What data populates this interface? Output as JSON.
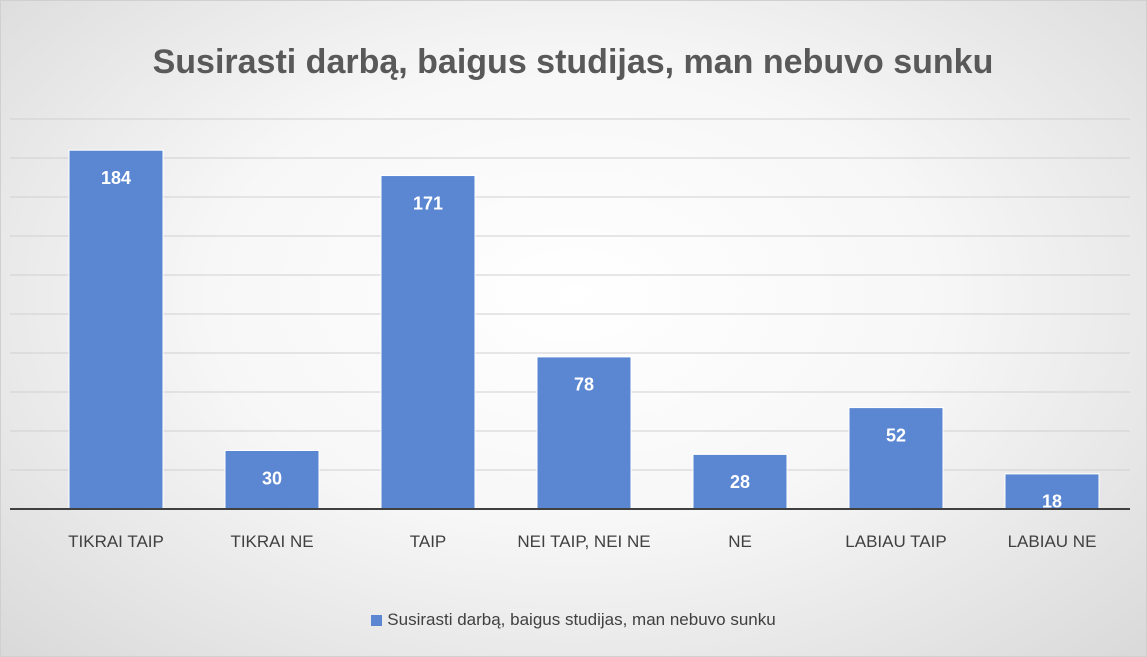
{
  "chart_data": {
    "type": "bar",
    "title": "Susirasti darbą, baigus studijas, man nebuvo sunku",
    "categories": [
      "TIKRAI TAIP",
      "TIKRAI NE",
      "TAIP",
      "NEI TAIP, NEI NE",
      "NE",
      "LABIAU TAIP",
      "LABIAU NE"
    ],
    "series": [
      {
        "name": "Susirasti darbą, baigus studijas, man nebuvo sunku",
        "color": "#5b87d2",
        "values": [
          184,
          30,
          171,
          78,
          28,
          52,
          18
        ]
      }
    ],
    "ylim": [
      0,
      200
    ],
    "yticks": [
      0,
      20,
      40,
      60,
      80,
      100,
      120,
      140,
      160,
      180,
      200
    ],
    "grid": true,
    "legend": "bottom"
  }
}
